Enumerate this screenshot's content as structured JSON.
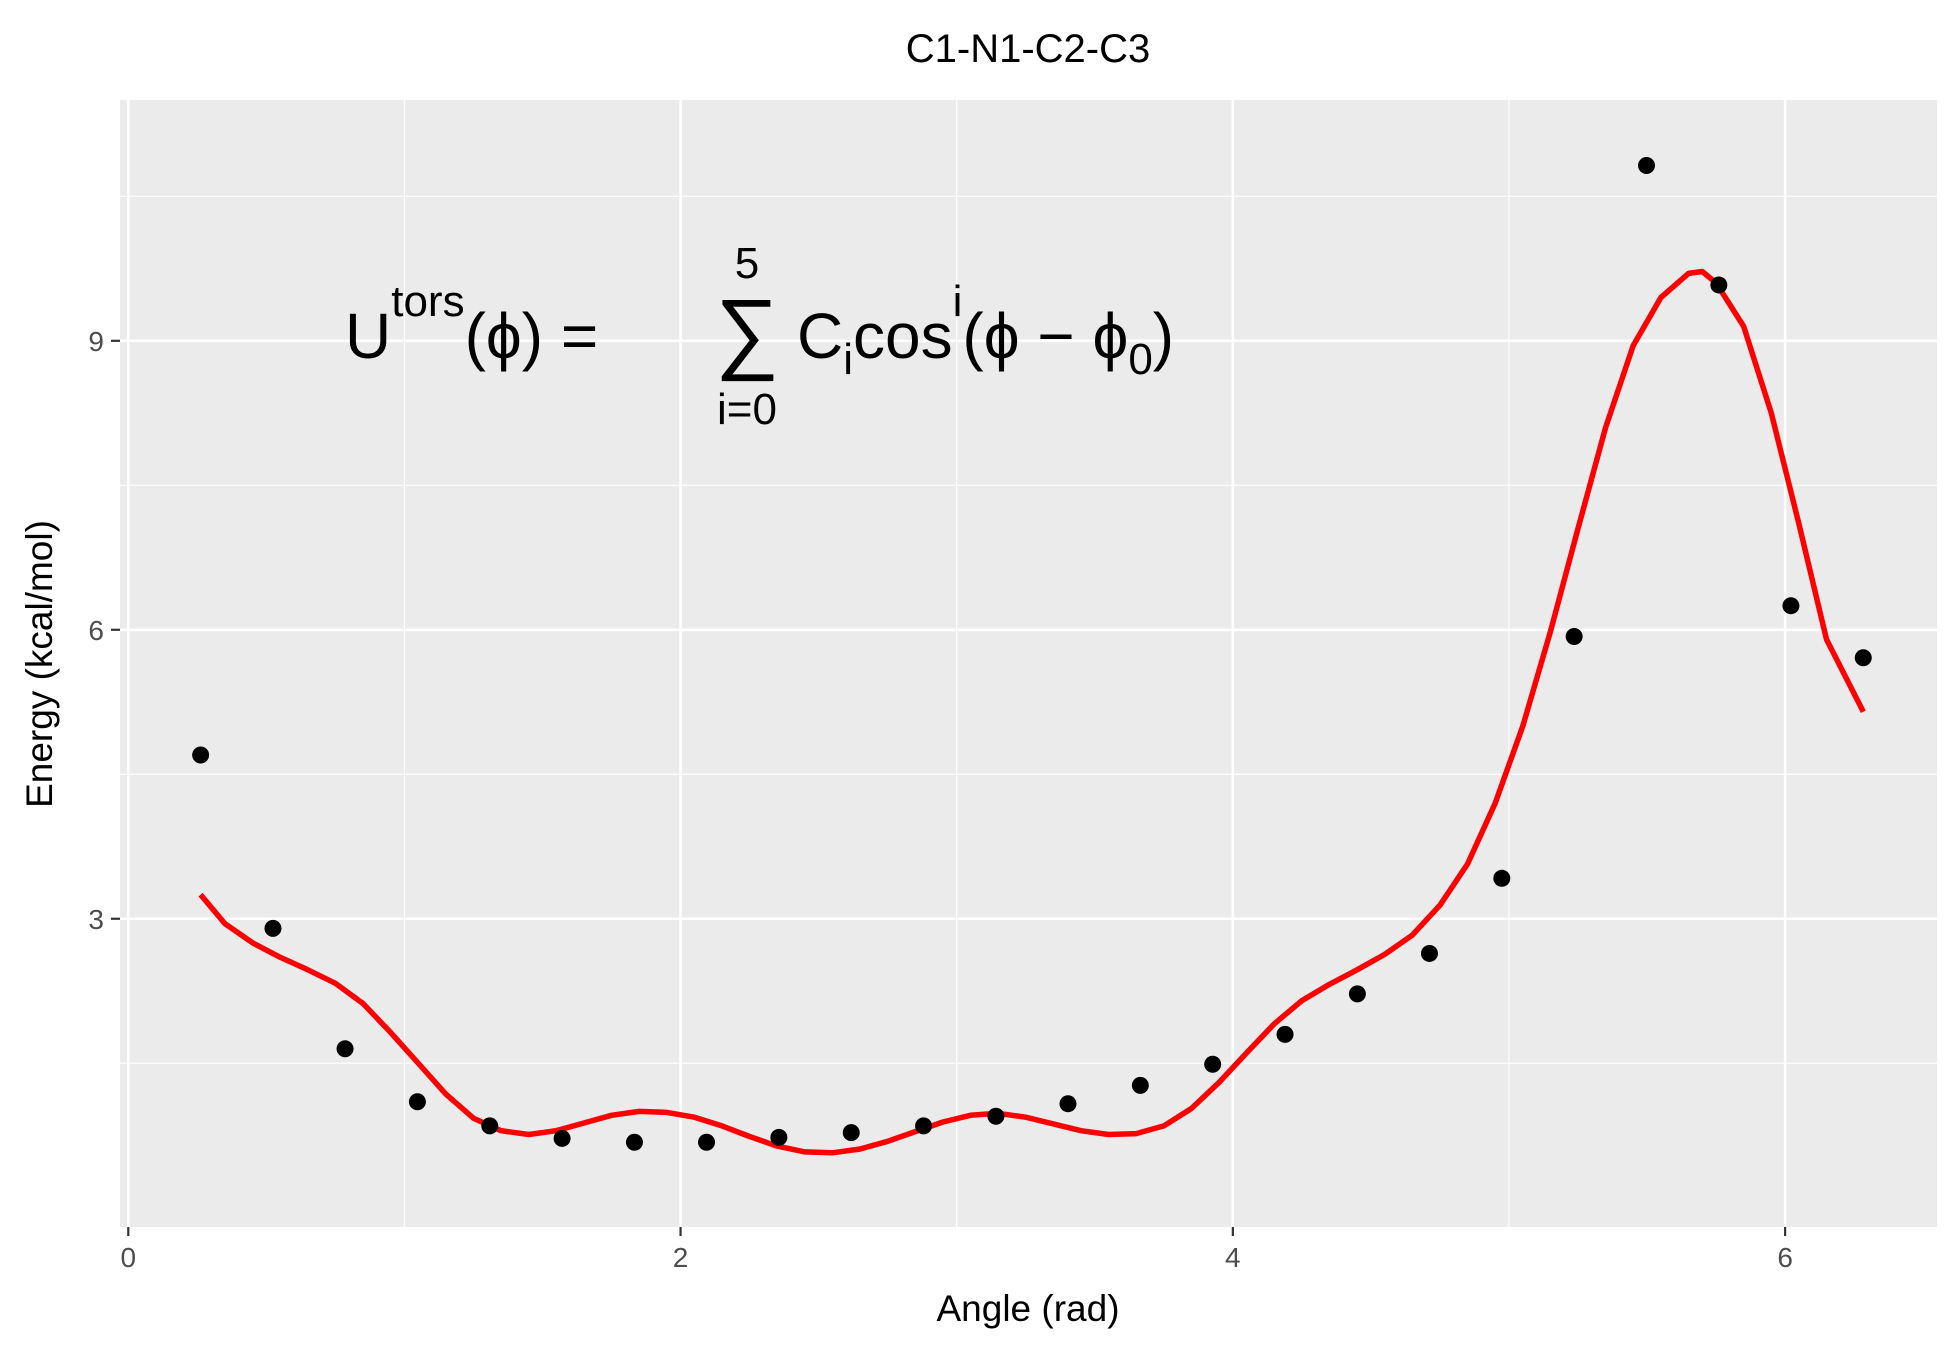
{
  "chart_data": {
    "type": "scatter",
    "title": "C1-N1-C2-C3",
    "xlabel": "Angle (rad)",
    "ylabel": "Energy (kcal/mol)",
    "xlim": [
      -0.03,
      6.55
    ],
    "ylim": [
      -0.2,
      11.5
    ],
    "x_ticks": [
      0,
      2,
      4,
      6
    ],
    "x_tick_labels": [
      "0",
      "2",
      "4",
      "6"
    ],
    "y_ticks": [
      3,
      6,
      9
    ],
    "y_tick_labels": [
      "3",
      "6",
      "9"
    ],
    "grid": true,
    "background": "#ebebeb",
    "grid_color": "#ffffff",
    "legend": "none",
    "series": [
      {
        "type": "scatter",
        "color": "#000000",
        "x": [
          0.262,
          0.524,
          0.785,
          1.047,
          1.309,
          1.571,
          1.833,
          2.094,
          2.356,
          2.618,
          2.88,
          3.142,
          3.403,
          3.665,
          3.927,
          4.189,
          4.451,
          4.712,
          4.974,
          5.236,
          5.498,
          5.76,
          6.021,
          6.283
        ],
        "y": [
          4.7,
          2.9,
          1.65,
          1.1,
          0.85,
          0.72,
          0.68,
          0.68,
          0.73,
          0.78,
          0.85,
          0.95,
          1.08,
          1.27,
          1.49,
          1.8,
          2.22,
          2.64,
          3.42,
          5.93,
          10.82,
          9.58,
          6.25,
          5.71
        ]
      },
      {
        "type": "line",
        "color": "#ff0000",
        "x": [
          0.262,
          0.35,
          0.45,
          0.55,
          0.65,
          0.75,
          0.85,
          0.95,
          1.05,
          1.15,
          1.25,
          1.35,
          1.45,
          1.55,
          1.65,
          1.75,
          1.85,
          1.95,
          2.05,
          2.15,
          2.25,
          2.35,
          2.45,
          2.55,
          2.65,
          2.75,
          2.85,
          2.95,
          3.05,
          3.15,
          3.25,
          3.35,
          3.45,
          3.55,
          3.65,
          3.75,
          3.85,
          3.95,
          4.05,
          4.15,
          4.25,
          4.35,
          4.45,
          4.55,
          4.65,
          4.75,
          4.85,
          4.95,
          5.05,
          5.15,
          5.25,
          5.35,
          5.45,
          5.55,
          5.65,
          5.7,
          5.75,
          5.85,
          5.95,
          6.05,
          6.15,
          6.283
        ],
        "y": [
          3.25,
          2.95,
          2.75,
          2.6,
          2.47,
          2.33,
          2.12,
          1.82,
          1.5,
          1.18,
          0.93,
          0.8,
          0.76,
          0.8,
          0.88,
          0.96,
          1.0,
          0.99,
          0.94,
          0.85,
          0.74,
          0.64,
          0.58,
          0.57,
          0.61,
          0.69,
          0.79,
          0.89,
          0.96,
          0.98,
          0.94,
          0.87,
          0.8,
          0.76,
          0.77,
          0.85,
          1.03,
          1.3,
          1.61,
          1.91,
          2.15,
          2.32,
          2.47,
          2.63,
          2.83,
          3.14,
          3.57,
          4.2,
          5.0,
          5.98,
          7.05,
          8.1,
          8.95,
          9.45,
          9.7,
          9.72,
          9.6,
          9.15,
          8.25,
          7.1,
          5.9,
          5.15
        ]
      }
    ]
  },
  "annotation": {
    "main": "U",
    "sup_tors": "tors",
    "arg": "(ϕ) = ",
    "sum_sign": "∑",
    "sum_upper": "5",
    "sum_lower": "i=0",
    "coef": "C",
    "coef_sub": "i",
    "cos": "cos",
    "cos_sup": "i",
    "rest_open": "(ϕ − ϕ",
    "phi_sub": "0",
    "rest_close": ")"
  }
}
